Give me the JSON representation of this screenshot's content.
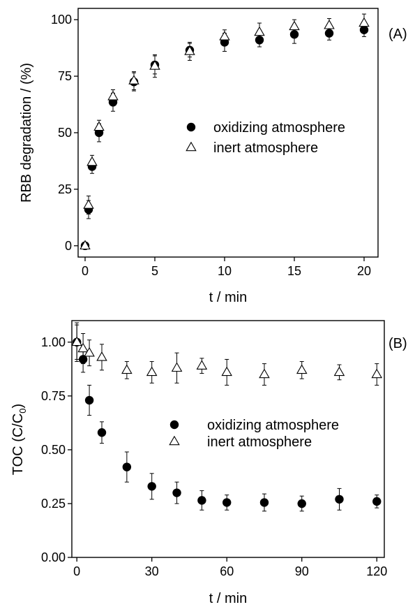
{
  "chart_data": [
    {
      "type": "scatter",
      "panel_label": "(A)",
      "xlabel": "t / min",
      "ylabel": "RBB degradation / (%)",
      "xlim": [
        -0.5,
        21
      ],
      "ylim": [
        -5,
        105
      ],
      "xticks": [
        "0",
        "5",
        "10",
        "15",
        "20"
      ],
      "yticks": [
        "0",
        "25",
        "50",
        "75",
        "100"
      ],
      "legend_position": "center-right",
      "series": [
        {
          "name": "oxidizing atmosphere",
          "marker": "filled-circle",
          "x": [
            0,
            0.25,
            0.5,
            1,
            2,
            3.5,
            5,
            7.5,
            10,
            12.5,
            15,
            17.5,
            20
          ],
          "y": [
            0,
            16,
            35,
            50,
            63.5,
            72.5,
            80,
            86.5,
            90,
            91,
            93.5,
            94,
            95.5
          ],
          "err": [
            0,
            4,
            3,
            4,
            4,
            4,
            4,
            3,
            4,
            3,
            4,
            3,
            3
          ]
        },
        {
          "name": "inert atmosphere",
          "marker": "open-triangle",
          "x": [
            0,
            0.25,
            0.5,
            1,
            2,
            3.5,
            5,
            7.5,
            10,
            12.5,
            15,
            17.5,
            20
          ],
          "y": [
            0,
            18,
            37,
            52.5,
            66,
            73,
            79.5,
            86,
            92.5,
            94.5,
            97,
            97.5,
            98.5
          ],
          "err": [
            0,
            4,
            3,
            3,
            3,
            4,
            5,
            4,
            3,
            4,
            3,
            3,
            4
          ]
        }
      ]
    },
    {
      "type": "scatter",
      "panel_label": "(B)",
      "xlabel": "t / min",
      "ylabel": "TOC (C/C",
      "ylabel_subscript": "0",
      "ylabel_suffix": ")",
      "xlim": [
        -2,
        123
      ],
      "ylim": [
        0,
        1.1
      ],
      "xticks": [
        "0",
        "30",
        "60",
        "90",
        "120"
      ],
      "yticks": [
        "0.00",
        "0.25",
        "0.50",
        "0.75",
        "1.00"
      ],
      "legend_position": "center-right",
      "series": [
        {
          "name": "oxidizing atmosphere",
          "marker": "filled-circle",
          "x": [
            0,
            2.5,
            5,
            10,
            20,
            30,
            40,
            50,
            60,
            75,
            90,
            105,
            120
          ],
          "y": [
            1.0,
            0.92,
            0.73,
            0.58,
            0.42,
            0.33,
            0.3,
            0.265,
            0.255,
            0.255,
            0.25,
            0.27,
            0.26
          ],
          "err": [
            0.08,
            0.06,
            0.07,
            0.05,
            0.07,
            0.06,
            0.05,
            0.045,
            0.035,
            0.04,
            0.035,
            0.05,
            0.03
          ]
        },
        {
          "name": "inert atmosphere",
          "marker": "open-triangle",
          "x": [
            0,
            2.5,
            5,
            10,
            20,
            30,
            40,
            50,
            60,
            75,
            90,
            105,
            120
          ],
          "y": [
            1.0,
            0.97,
            0.95,
            0.93,
            0.87,
            0.86,
            0.88,
            0.89,
            0.86,
            0.85,
            0.87,
            0.86,
            0.85
          ],
          "err": [
            0.09,
            0.07,
            0.06,
            0.06,
            0.04,
            0.05,
            0.07,
            0.035,
            0.06,
            0.05,
            0.04,
            0.035,
            0.05
          ]
        }
      ]
    }
  ]
}
